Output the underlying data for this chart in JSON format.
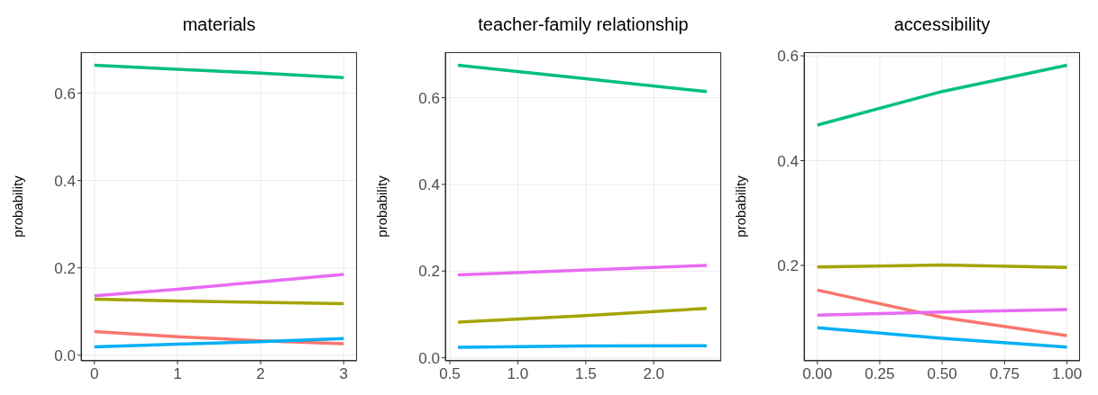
{
  "chart_data": [
    {
      "type": "line",
      "title": "materials",
      "ylabel": "probability",
      "x": [
        0,
        1,
        2,
        3
      ],
      "series": [
        {
          "color": "#f8766d",
          "values": [
            0.054,
            0.042,
            0.033,
            0.026
          ]
        },
        {
          "color": "#a3a500",
          "values": [
            0.128,
            0.124,
            0.121,
            0.118
          ]
        },
        {
          "color": "#00bf7d",
          "values": [
            0.664,
            0.655,
            0.646,
            0.636
          ]
        },
        {
          "color": "#00b0f6",
          "values": [
            0.019,
            0.025,
            0.031,
            0.038
          ]
        },
        {
          "color": "#e76bf3",
          "values": [
            0.136,
            0.151,
            0.168,
            0.185
          ]
        }
      ],
      "xlim": [
        -0.16,
        3.16
      ],
      "xticks": [
        0,
        1,
        2,
        3
      ],
      "ylim": [
        -0.013,
        0.694
      ],
      "yticks": [
        {
          "value": 0,
          "label": "0.0"
        },
        {
          "value": 0.2,
          "label": "0.2"
        },
        {
          "value": 0.4,
          "label": "0.4"
        },
        {
          "value": 0.6,
          "label": "0.6"
        }
      ],
      "grid": true,
      "line_style": "solid",
      "marker": "none",
      "legend": false
    },
    {
      "type": "line",
      "title": "teacher-family relationship",
      "ylabel": "probability",
      "x": [
        0.56,
        1.47,
        2.39
      ],
      "series": [
        {
          "color": "#a3a500",
          "values": [
            0.082,
            0.097,
            0.114
          ]
        },
        {
          "color": "#00bf7d",
          "values": [
            0.675,
            0.645,
            0.614
          ]
        },
        {
          "color": "#00b0f6",
          "values": [
            0.024,
            0.027,
            0.028
          ]
        },
        {
          "color": "#e76bf3",
          "values": [
            0.191,
            0.202,
            0.213
          ]
        }
      ],
      "xlim": [
        0.467,
        2.496
      ],
      "xticks": [
        {
          "value": 0.5,
          "label": "0.5"
        },
        {
          "value": 1,
          "label": "1.0"
        },
        {
          "value": 1.5,
          "label": "1.5"
        },
        {
          "value": 2,
          "label": "2.0"
        }
      ],
      "ylim": [
        -0.007,
        0.705
      ],
      "yticks": [
        {
          "value": 0,
          "label": "0.0"
        },
        {
          "value": 0.2,
          "label": "0.2"
        },
        {
          "value": 0.4,
          "label": "0.4"
        },
        {
          "value": 0.6,
          "label": "0.6"
        }
      ],
      "grid": true,
      "line_style": "solid",
      "marker": "none",
      "legend": false
    },
    {
      "type": "line",
      "title": "accessibility",
      "ylabel": "probability",
      "x": [
        0,
        0.5,
        1
      ],
      "series": [
        {
          "color": "#f8766d",
          "values": [
            0.153,
            0.101,
            0.066
          ]
        },
        {
          "color": "#a3a500",
          "values": [
            0.197,
            0.201,
            0.196
          ]
        },
        {
          "color": "#00bf7d",
          "values": [
            0.468,
            0.532,
            0.582
          ]
        },
        {
          "color": "#00b0f6",
          "values": [
            0.081,
            0.061,
            0.044
          ]
        },
        {
          "color": "#e76bf3",
          "values": [
            0.105,
            0.111,
            0.116
          ]
        }
      ],
      "xlim": [
        -0.053,
        1.052
      ],
      "xticks": [
        {
          "value": 0,
          "label": "0.00"
        },
        {
          "value": 0.25,
          "label": "0.25"
        },
        {
          "value": 0.5,
          "label": "0.50"
        },
        {
          "value": 0.75,
          "label": "0.75"
        },
        {
          "value": 1,
          "label": "1.00"
        }
      ],
      "ylim": [
        0.018,
        0.607
      ],
      "yticks": [
        {
          "value": 0.2,
          "label": "0.2"
        },
        {
          "value": 0.4,
          "label": "0.4"
        },
        {
          "value": 0.6,
          "label": "0.6"
        }
      ],
      "grid": true,
      "line_style": "solid",
      "marker": "none",
      "legend": false
    }
  ]
}
